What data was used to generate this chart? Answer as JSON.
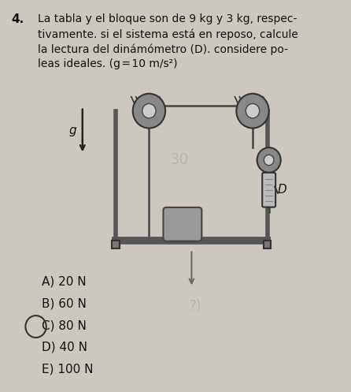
{
  "title_number": "4.",
  "problem_text_lines": [
    "La tabla y el bloque son de 9 kg y 3 kg, respec-",
    "tivamente. si el sistema está en reposo, calcule",
    "la lectura del dinámómetro (D). considere po-",
    "leas ideales. (g = 10 m/s²)"
  ],
  "options": [
    "A) 20 N",
    "B) 60 N",
    "C) 80 N",
    "D) 40 N",
    "E) 100 N"
  ],
  "circled_option_index": 2,
  "bg_color": "#ccc8bf",
  "text_color": "#111111",
  "rope_color": "#444444",
  "frame_color": "#555555",
  "pulley_outer": "#888888",
  "pulley_inner": "#cccccc",
  "block_color": "#999999",
  "dyn_color": "#bbbbbb"
}
